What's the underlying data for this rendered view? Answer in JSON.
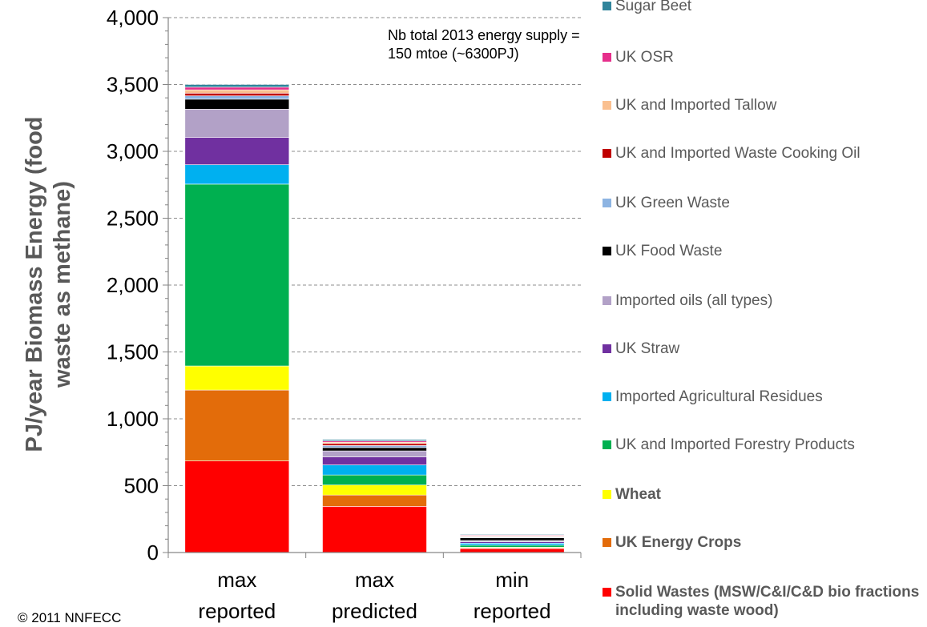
{
  "chart_data": {
    "type": "bar",
    "stacked": true,
    "ylabel": "PJ/year Biomass Energy (food waste as methane)",
    "ylim": [
      0,
      4000
    ],
    "yticks": [
      0,
      500,
      1000,
      1500,
      2000,
      2500,
      3000,
      3500,
      4000
    ],
    "ytick_labels": [
      "0",
      "500",
      "1,000",
      "1,500",
      "2,000",
      "2,500",
      "3,000",
      "3,500",
      "4,000"
    ],
    "categories": [
      {
        "line1": "max",
        "line2": "reported"
      },
      {
        "line1": "max",
        "line2": "predicted"
      },
      {
        "line1": "min",
        "line2": "reported"
      }
    ],
    "grid": "horizontal dashed",
    "legend_position": "right",
    "annotation": "Nb total 2013 energy supply = 150 mtoe (~6300PJ)",
    "series": [
      {
        "name": "Solid Wastes (MSW/C&I/C&D bio fractions including waste wood)",
        "color": "#FF0000",
        "bold": true,
        "values": [
          685,
          345,
          30
        ]
      },
      {
        "name": "UK Energy Crops",
        "color": "#E36C0A",
        "bold": true,
        "values": [
          530,
          85,
          5
        ]
      },
      {
        "name": "Wheat",
        "color": "#FFFF00",
        "bold": true,
        "values": [
          180,
          75,
          5
        ]
      },
      {
        "name": "UK and Imported Forestry Products",
        "color": "#00B050",
        "bold": false,
        "values": [
          1360,
          75,
          15
        ]
      },
      {
        "name": "Imported Agricultural Residues",
        "color": "#00B0F0",
        "bold": false,
        "values": [
          145,
          75,
          15
        ]
      },
      {
        "name": "UK Straw",
        "color": "#7030A0",
        "bold": false,
        "values": [
          205,
          60,
          10
        ]
      },
      {
        "name": "Imported oils (all types)",
        "color": "#B2A1C7",
        "bold": false,
        "values": [
          210,
          45,
          10
        ]
      },
      {
        "name": "UK Food Waste",
        "color": "#000000",
        "bold": false,
        "values": [
          75,
          25,
          20
        ]
      },
      {
        "name": "UK Green Waste",
        "color": "#8DB4E2",
        "bold": false,
        "values": [
          25,
          15,
          5
        ]
      },
      {
        "name": "UK and Imported Waste Cooking Oil",
        "color": "#C00000",
        "bold": false,
        "values": [
          20,
          15,
          5
        ]
      },
      {
        "name": "UK and Imported Tallow",
        "color": "#FAC090",
        "bold": false,
        "values": [
          25,
          10,
          5
        ]
      },
      {
        "name": "UK OSR",
        "color": "#E62E8B",
        "bold": false,
        "values": [
          20,
          10,
          5
        ]
      },
      {
        "name": "Sugar Beet",
        "color": "#31859C",
        "bold": false,
        "values": [
          20,
          10,
          5
        ]
      }
    ]
  },
  "copyright": "© 2011 NNFECC"
}
